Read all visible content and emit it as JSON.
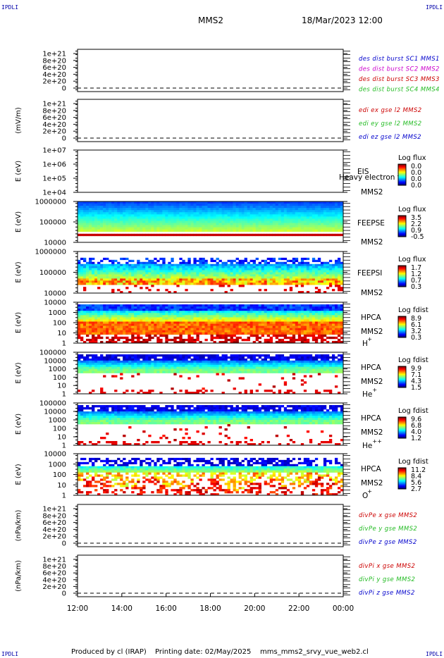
{
  "header": {
    "corner_tl": "IPDLI",
    "corner_tr": "IPDLI",
    "corner_bl": "IPDLI",
    "corner_br": "IPDLI",
    "mission": "MMS2",
    "datetime": "18/Mar/2023 12:00"
  },
  "footer": {
    "produced": "Produced by cl (IRAP)",
    "printing": "Printing date: 02/May/2025",
    "script": "mms_mms2_srvy_vue_web2.cl"
  },
  "colors": {
    "blue": "#0000cc",
    "magenta": "#cc00cc",
    "red": "#cc0000",
    "green": "#22bb22"
  },
  "panels": [
    {
      "id": "p1",
      "kind": "line",
      "ylabel": "",
      "yticks": [
        "1e+21",
        "8e+20",
        "6e+20",
        "4e+20",
        "2e+20",
        "0"
      ],
      "legend": [
        {
          "text": "des dist burst SC1 MMS1",
          "color": "blue"
        },
        {
          "text": "des dist burst SC2 MMS2",
          "color": "magenta"
        },
        {
          "text": "des dist burst SC3 MMS3",
          "color": "red"
        },
        {
          "text": "des dist burst SC4 MMS4",
          "color": "green"
        }
      ]
    },
    {
      "id": "p2",
      "kind": "line",
      "ylabel": "(mV/m)",
      "yticks": [
        "1e+21",
        "8e+20",
        "6e+20",
        "4e+20",
        "2e+20",
        "0"
      ],
      "legend": [
        {
          "text": "edi ex gse l2 MMS2",
          "color": "red"
        },
        {
          "text": "edi ey gse l2 MMS2",
          "color": "green"
        },
        {
          "text": "edi ez gse l2 MMS2",
          "color": "blue"
        }
      ]
    },
    {
      "id": "p3",
      "kind": "empty",
      "ylabel": "E (eV)",
      "yticks": [
        "1e+07",
        "1e+06",
        "1e+05",
        "1e+04"
      ],
      "inst": "EIS",
      "inst2": "MMS2",
      "overlay": "Heavy electron to",
      "cbar_title": "Log flux",
      "cbar_ticks": [
        "0.0",
        "0.0",
        "0.0",
        "0.0"
      ]
    },
    {
      "id": "p4",
      "kind": "feepse",
      "ylabel": "E (eV)",
      "yticks": [
        "1000000",
        "100000",
        "10000"
      ],
      "inst": "FEEPSE",
      "inst2": "MMS2",
      "cbar_title": "Log flux",
      "cbar_ticks": [
        "3.5",
        "2.2",
        "0.9",
        "-0.5"
      ]
    },
    {
      "id": "p5",
      "kind": "feepsi",
      "ylabel": "E (eV)",
      "yticks": [
        "1000000",
        "100000",
        "10000"
      ],
      "inst": "FEEPSI",
      "inst2": "MMS2",
      "cbar_title": "Log flux",
      "cbar_ticks": [
        "1.7",
        "1.2",
        "0.7",
        "0.3"
      ]
    },
    {
      "id": "p6",
      "kind": "hpca_h",
      "ylabel": "E (eV)",
      "yticks": [
        "10000",
        "1000",
        "100",
        "10",
        "1"
      ],
      "inst": "HPCA",
      "inst2": "MMS2",
      "species": "H",
      "species_sup": "+",
      "cbar_title": "Log fdist",
      "cbar_ticks": [
        "8.9",
        "6.1",
        "3.2",
        "0.3"
      ]
    },
    {
      "id": "p7",
      "kind": "hpca_he",
      "ylabel": "E (eV)",
      "yticks": [
        "100000",
        "10000",
        "1000",
        "100",
        "10",
        "1"
      ],
      "inst": "HPCA",
      "inst2": "MMS2",
      "species": "He",
      "species_sup": "+",
      "cbar_title": "Log fdist",
      "cbar_ticks": [
        "9.9",
        "7.1",
        "4.3",
        "1.5"
      ]
    },
    {
      "id": "p8",
      "kind": "hpca_hepp",
      "ylabel": "E (eV)",
      "yticks": [
        "100000",
        "10000",
        "1000",
        "100",
        "10",
        "1"
      ],
      "inst": "HPCA",
      "inst2": "MMS2",
      "species": "He",
      "species_sup": "++",
      "cbar_title": "Log fdist",
      "cbar_ticks": [
        "9.6",
        "6.8",
        "4.0",
        "1.2"
      ]
    },
    {
      "id": "p9",
      "kind": "hpca_o",
      "ylabel": "E (eV)",
      "yticks": [
        "10000",
        "1000",
        "100",
        "10",
        "1"
      ],
      "inst": "HPCA",
      "inst2": "MMS2",
      "species": "O",
      "species_sup": "+",
      "cbar_title": "Log fdist",
      "cbar_ticks": [
        "11.2",
        "8.4",
        "5.6",
        "2.7"
      ]
    },
    {
      "id": "p10",
      "kind": "line",
      "ylabel": "(nPa/km)",
      "yticks": [
        "1e+21",
        "8e+20",
        "6e+20",
        "4e+20",
        "2e+20",
        "0"
      ],
      "legend": [
        {
          "text": "divPe x gse MMS2",
          "color": "red"
        },
        {
          "text": "divPe y gse MMS2",
          "color": "green"
        },
        {
          "text": "divPe z gse MMS2",
          "color": "blue"
        }
      ]
    },
    {
      "id": "p11",
      "kind": "line",
      "ylabel": "(nPa/km)",
      "yticks": [
        "1e+21",
        "8e+20",
        "6e+20",
        "4e+20",
        "2e+20",
        "0"
      ],
      "legend": [
        {
          "text": "divPi x gse MMS2",
          "color": "red"
        },
        {
          "text": "divPi y gse MMS2",
          "color": "green"
        },
        {
          "text": "divPi z gse MMS2",
          "color": "blue"
        }
      ]
    }
  ],
  "chart_data": {
    "type": "heatmap",
    "title": "MMS2",
    "x_tick_labels": [
      "12:00",
      "14:00",
      "16:00",
      "18:00",
      "20:00",
      "22:00",
      "00:00"
    ],
    "xlim": [
      "12:00",
      "00:00"
    ],
    "series": [
      {
        "name": "FEEPSE",
        "y_range_eV": [
          10000,
          1000000
        ],
        "colorbar": "Log flux",
        "cbar_range": [
          -0.5,
          3.5
        ]
      },
      {
        "name": "FEEPSI",
        "y_range_eV": [
          10000,
          1000000
        ],
        "colorbar": "Log flux",
        "cbar_range": [
          0.3,
          1.7
        ]
      },
      {
        "name": "HPCA H+",
        "y_range_eV": [
          1,
          40000
        ],
        "colorbar": "Log fdist",
        "cbar_range": [
          0.3,
          8.9
        ]
      },
      {
        "name": "HPCA He+",
        "y_range_eV": [
          1,
          100000
        ],
        "colorbar": "Log fdist",
        "cbar_range": [
          1.5,
          9.9
        ]
      },
      {
        "name": "HPCA He++",
        "y_range_eV": [
          1,
          100000
        ],
        "colorbar": "Log fdist",
        "cbar_range": [
          1.2,
          9.6
        ]
      },
      {
        "name": "HPCA O+",
        "y_range_eV": [
          1,
          40000
        ],
        "colorbar": "Log fdist",
        "cbar_range": [
          2.7,
          11.2
        ]
      }
    ]
  }
}
